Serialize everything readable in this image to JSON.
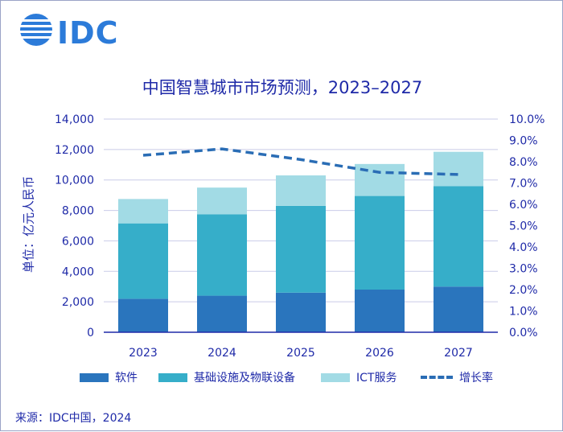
{
  "logo": {
    "text": "IDC"
  },
  "colors": {
    "software": "#2a75bd",
    "infrastructure": "#36aec9",
    "ict": "#a2dbe5",
    "growth": "#2a6db5",
    "text": "#1f2aa8",
    "axis": "#1f2aa8",
    "grid": "#c9cbe8"
  },
  "source": "来源：IDC中国，2024",
  "chart_data": {
    "type": "bar",
    "stacked": true,
    "title": "中国智慧城市市场预测，2023–2027",
    "ylabel": "单位：亿元人民币",
    "xlabel": "",
    "categories": [
      "2023",
      "2024",
      "2025",
      "2026",
      "2027"
    ],
    "ylim": [
      0,
      14000
    ],
    "y_ticks": [
      "0",
      "2,000",
      "4,000",
      "6,000",
      "8,000",
      "10,000",
      "12,000",
      "14,000"
    ],
    "y2lim": [
      0,
      10
    ],
    "y2_ticks": [
      "0.0%",
      "1.0%",
      "2.0%",
      "3.0%",
      "4.0%",
      "5.0%",
      "6.0%",
      "7.0%",
      "8.0%",
      "9.0%",
      "10.0%"
    ],
    "series": [
      {
        "name": "软件",
        "values": [
          2200,
          2400,
          2600,
          2800,
          3000
        ]
      },
      {
        "name": "基础设施及物联设备",
        "values": [
          4950,
          5350,
          5700,
          6150,
          6600
        ]
      },
      {
        "name": "ICT服务",
        "values": [
          1600,
          1750,
          2000,
          2100,
          2250
        ]
      }
    ],
    "line_series": {
      "name": "增长率",
      "axis": "secondary",
      "values": [
        8.3,
        8.6,
        8.1,
        7.5,
        7.4
      ]
    },
    "grid": true,
    "legend_position": "bottom"
  }
}
